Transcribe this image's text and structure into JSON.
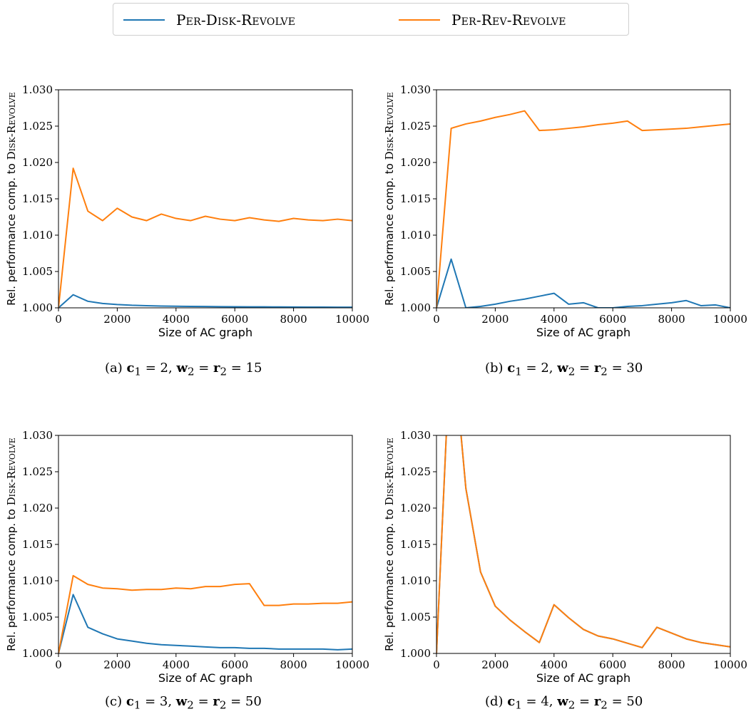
{
  "legend": [
    {
      "label": "Per-Disk-Revolve",
      "color": "#1f77b4"
    },
    {
      "label": "Per-Rev-Revolve",
      "color": "#ff7f0e"
    }
  ],
  "chart_data": [
    {
      "type": "line",
      "xlabel": "Size of AC graph",
      "ylabel": "Rel. performance comp. to Disk-Revolve",
      "xlim": [
        0,
        10000
      ],
      "ylim": [
        1.0,
        1.03
      ],
      "xticks": [
        "0",
        "2000",
        "4000",
        "6000",
        "8000",
        "10000"
      ],
      "yticks": [
        "1.000",
        "1.005",
        "1.010",
        "1.015",
        "1.020",
        "1.025",
        "1.030"
      ],
      "caption": {
        "prefix": "(a) ",
        "c_sym": "c",
        "c_sub": "1",
        "c_val": " = 2, ",
        "w_sym": "w",
        "w_sub": "2",
        "r_sym": "r",
        "r_sub": "2",
        "eq_val": " = 15"
      },
      "series": [
        {
          "name": "Per-Disk-Revolve",
          "color": "#1f77b4",
          "x": [
            0,
            500,
            1000,
            1500,
            2000,
            2500,
            3000,
            3500,
            4000,
            4500,
            5000,
            5500,
            6000,
            6500,
            7000,
            7500,
            8000,
            8500,
            9000,
            9500,
            10000
          ],
          "y": [
            1.0,
            1.0018,
            1.0009,
            1.0006,
            1.00045,
            1.00035,
            1.0003,
            1.00025,
            1.00022,
            1.0002,
            1.00018,
            1.00016,
            1.00015,
            1.00014,
            1.00013,
            1.00012,
            1.00011,
            1.0001,
            1.0001,
            1.00009,
            1.00008
          ]
        },
        {
          "name": "Per-Rev-Revolve",
          "color": "#ff7f0e",
          "x": [
            0,
            500,
            1000,
            1500,
            2000,
            2500,
            3000,
            3500,
            4000,
            4500,
            5000,
            5500,
            6000,
            6500,
            7000,
            7500,
            8000,
            8500,
            9000,
            9500,
            10000
          ],
          "y": [
            1.0,
            1.0192,
            1.0133,
            1.012,
            1.0137,
            1.0125,
            1.012,
            1.0129,
            1.0123,
            1.012,
            1.0126,
            1.0122,
            1.012,
            1.0124,
            1.0121,
            1.0119,
            1.0123,
            1.0121,
            1.012,
            1.0122,
            1.012
          ]
        }
      ]
    },
    {
      "type": "line",
      "xlabel": "Size of AC graph",
      "ylabel": "Rel. performance comp. to Disk-Revolve",
      "xlim": [
        0,
        10000
      ],
      "ylim": [
        1.0,
        1.03
      ],
      "xticks": [
        "0",
        "2000",
        "4000",
        "6000",
        "8000",
        "10000"
      ],
      "yticks": [
        "1.000",
        "1.005",
        "1.010",
        "1.015",
        "1.020",
        "1.025",
        "1.030"
      ],
      "caption": {
        "prefix": "(b) ",
        "c_sym": "c",
        "c_sub": "1",
        "c_val": " = 2, ",
        "w_sym": "w",
        "w_sub": "2",
        "r_sym": "r",
        "r_sub": "2",
        "eq_val": " = 30"
      },
      "series": [
        {
          "name": "Per-Disk-Revolve",
          "color": "#1f77b4",
          "x": [
            0,
            500,
            1000,
            1500,
            2000,
            2500,
            3000,
            3500,
            4000,
            4500,
            5000,
            5500,
            6000,
            6500,
            7000,
            7500,
            8000,
            8500,
            9000,
            9500,
            10000
          ],
          "y": [
            1.0,
            1.0067,
            1.0,
            1.0002,
            1.0005,
            1.0009,
            1.0012,
            1.0016,
            1.002,
            1.0005,
            1.0007,
            1.0,
            1.0,
            1.0002,
            1.0003,
            1.0005,
            1.0007,
            1.001,
            1.0003,
            1.0004,
            1.0
          ]
        },
        {
          "name": "Per-Rev-Revolve",
          "color": "#ff7f0e",
          "x": [
            0,
            500,
            1000,
            1500,
            2000,
            2500,
            3000,
            3500,
            4000,
            4500,
            5000,
            5500,
            6000,
            6500,
            7000,
            7500,
            8000,
            8500,
            9000,
            9500,
            10000
          ],
          "y": [
            1.0,
            1.0247,
            1.0253,
            1.0257,
            1.0262,
            1.0266,
            1.0271,
            1.0244,
            1.0245,
            1.0247,
            1.0249,
            1.0252,
            1.0254,
            1.0257,
            1.0244,
            1.0245,
            1.0246,
            1.0247,
            1.0249,
            1.0251,
            1.0253
          ]
        }
      ]
    },
    {
      "type": "line",
      "xlabel": "Size of AC graph",
      "ylabel": "Rel. performance comp. to Disk-Revolve",
      "xlim": [
        0,
        10000
      ],
      "ylim": [
        1.0,
        1.03
      ],
      "xticks": [
        "0",
        "2000",
        "4000",
        "6000",
        "8000",
        "10000"
      ],
      "yticks": [
        "1.000",
        "1.005",
        "1.010",
        "1.015",
        "1.020",
        "1.025",
        "1.030"
      ],
      "caption": {
        "prefix": "(c) ",
        "c_sym": "c",
        "c_sub": "1",
        "c_val": " = 3, ",
        "w_sym": "w",
        "w_sub": "2",
        "r_sym": "r",
        "r_sub": "2",
        "eq_val": " = 50"
      },
      "series": [
        {
          "name": "Per-Disk-Revolve",
          "color": "#1f77b4",
          "x": [
            0,
            500,
            1000,
            1500,
            2000,
            2500,
            3000,
            3500,
            4000,
            4500,
            5000,
            5500,
            6000,
            6500,
            7000,
            7500,
            8000,
            8500,
            9000,
            9500,
            10000
          ],
          "y": [
            1.0,
            1.0081,
            1.0036,
            1.0027,
            1.002,
            1.0017,
            1.0014,
            1.0012,
            1.0011,
            1.001,
            1.0009,
            1.0008,
            1.0008,
            1.0007,
            1.0007,
            1.0006,
            1.0006,
            1.0006,
            1.0006,
            1.0005,
            1.0006
          ]
        },
        {
          "name": "Per-Rev-Revolve",
          "color": "#ff7f0e",
          "x": [
            0,
            500,
            1000,
            1500,
            2000,
            2500,
            3000,
            3500,
            4000,
            4500,
            5000,
            5500,
            6000,
            6500,
            7000,
            7500,
            8000,
            8500,
            9000,
            9500,
            10000
          ],
          "y": [
            1.0,
            1.0107,
            1.0095,
            1.009,
            1.0089,
            1.0087,
            1.0088,
            1.0088,
            1.009,
            1.0089,
            1.0092,
            1.0092,
            1.0095,
            1.0096,
            1.0066,
            1.0066,
            1.0068,
            1.0068,
            1.0069,
            1.0069,
            1.0071
          ]
        }
      ]
    },
    {
      "type": "line",
      "xlabel": "Size of AC graph",
      "ylabel": "Rel. performance comp. to Disk-Revolve",
      "xlim": [
        0,
        10000
      ],
      "ylim": [
        1.0,
        1.03
      ],
      "xticks": [
        "0",
        "2000",
        "4000",
        "6000",
        "8000",
        "10000"
      ],
      "yticks": [
        "1.000",
        "1.005",
        "1.010",
        "1.015",
        "1.020",
        "1.025",
        "1.030"
      ],
      "caption": {
        "prefix": "(d) ",
        "c_sym": "c",
        "c_sub": "1",
        "c_val": " = 4, ",
        "w_sym": "w",
        "w_sub": "2",
        "r_sym": "r",
        "r_sub": "2",
        "eq_val": " = 50"
      },
      "series": [
        {
          "name": "Per-Disk-Revolve",
          "color": "#1f77b4",
          "x": [
            0,
            500,
            1000,
            1500,
            2000,
            2500,
            3000,
            3500,
            4000,
            4500,
            5000,
            5500,
            6000,
            6500,
            7000,
            7500,
            8000,
            8500,
            9000,
            9500,
            10000
          ],
          "y": [
            1.0,
            1.045,
            1.0227,
            1.0112,
            1.0065,
            1.0046,
            1.003,
            1.0015,
            1.0067,
            1.0049,
            1.0033,
            1.0024,
            1.002,
            1.0014,
            1.0008,
            1.0036,
            1.0028,
            1.002,
            1.0015,
            1.0012,
            1.0009
          ]
        },
        {
          "name": "Per-Rev-Revolve",
          "color": "#ff7f0e",
          "x": [
            0,
            500,
            1000,
            1500,
            2000,
            2500,
            3000,
            3500,
            4000,
            4500,
            5000,
            5500,
            6000,
            6500,
            7000,
            7500,
            8000,
            8500,
            9000,
            9500,
            10000
          ],
          "y": [
            1.0,
            1.045,
            1.0227,
            1.0112,
            1.0065,
            1.0046,
            1.003,
            1.0015,
            1.0067,
            1.0049,
            1.0033,
            1.0024,
            1.002,
            1.0014,
            1.0008,
            1.0036,
            1.0028,
            1.002,
            1.0015,
            1.0012,
            1.0009
          ]
        }
      ]
    }
  ]
}
